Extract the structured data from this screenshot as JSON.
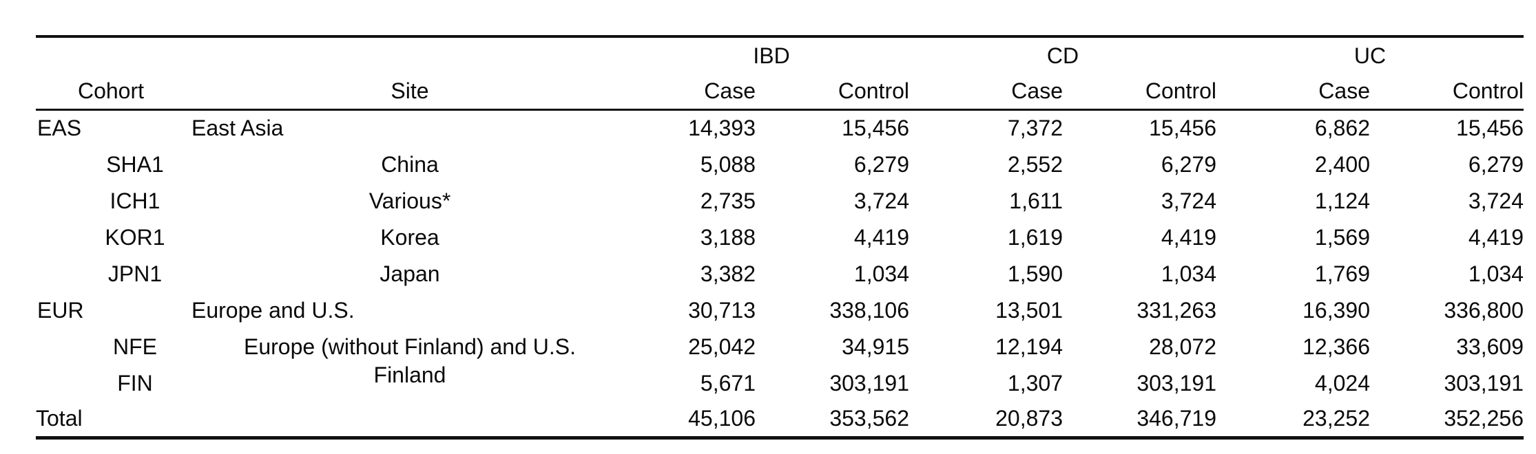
{
  "table": {
    "group_headers": {
      "ibd": "IBD",
      "cd": "CD",
      "uc": "UC"
    },
    "column_headers": {
      "cohort": "Cohort",
      "site": "Site",
      "case": "Case",
      "control": "Control"
    },
    "rows": [
      {
        "cohort": "EAS",
        "site": "East Asia",
        "level": "main",
        "values": [
          "14,393",
          "15,456",
          "7,372",
          "15,456",
          "6,862",
          "15,456"
        ]
      },
      {
        "cohort": "SHA1",
        "site": "China",
        "level": "sub",
        "values": [
          "5,088",
          "6,279",
          "2,552",
          "6,279",
          "2,400",
          "6,279"
        ]
      },
      {
        "cohort": "ICH1",
        "site": "Various*",
        "level": "sub",
        "values": [
          "2,735",
          "3,724",
          "1,611",
          "3,724",
          "1,124",
          "3,724"
        ]
      },
      {
        "cohort": "KOR1",
        "site": "Korea",
        "level": "sub",
        "values": [
          "3,188",
          "4,419",
          "1,619",
          "4,419",
          "1,569",
          "4,419"
        ]
      },
      {
        "cohort": "JPN1",
        "site": "Japan",
        "level": "sub",
        "values": [
          "3,382",
          "1,034",
          "1,590",
          "1,034",
          "1,769",
          "1,034"
        ]
      },
      {
        "cohort": "EUR",
        "site": "Europe and U.S.",
        "level": "main",
        "values": [
          "30,713",
          "338,106",
          "13,501",
          "331,263",
          "16,390",
          "336,800"
        ]
      },
      {
        "cohort": "NFE",
        "site": "Europe (without Finland) and U.S.",
        "level": "sub",
        "values": [
          "25,042",
          "34,915",
          "12,194",
          "28,072",
          "12,366",
          "33,609"
        ]
      },
      {
        "cohort": "FIN",
        "site": "Finland",
        "level": "sub",
        "values": [
          "5,671",
          "303,191",
          "1,307",
          "303,191",
          "4,024",
          "303,191"
        ]
      },
      {
        "cohort": "Total",
        "site": "",
        "level": "total",
        "values": [
          "45,106",
          "353,562",
          "20,873",
          "346,719",
          "23,252",
          "352,256"
        ]
      }
    ]
  }
}
